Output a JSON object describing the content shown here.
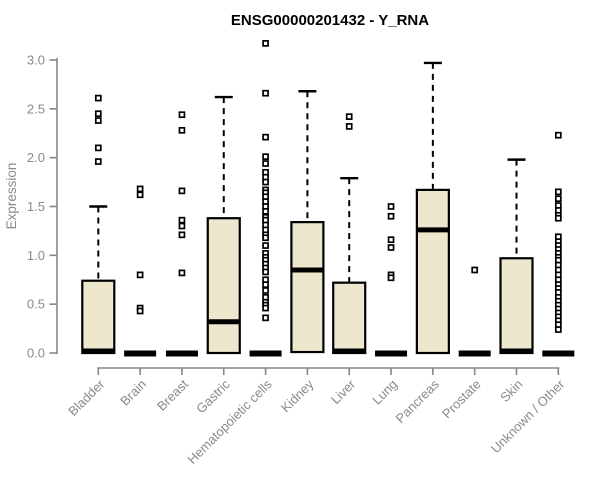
{
  "chart_data": {
    "type": "boxplot",
    "title": "ENSG00000201432 - Y_RNA",
    "ylabel": "Expression",
    "xlabel": "",
    "ylim": [
      0.0,
      3.2
    ],
    "yticks": [
      0.0,
      0.5,
      1.0,
      1.5,
      2.0,
      2.5,
      3.0
    ],
    "grid": false,
    "legend": false,
    "colors": {
      "box_fill": "#ECE7CD",
      "box_stroke": "#000000",
      "median": "#000000",
      "whisker": "#000000",
      "outlier_stroke": "#000000",
      "axis_line": "#878787",
      "axis_text": "#8a8a8a",
      "title": "#000000",
      "background": "#ffffff"
    },
    "categories": [
      "Bladder",
      "Brain",
      "Breast",
      "Gastric",
      "Hematopoietic cells",
      "Kidney",
      "Liver",
      "Lung",
      "Pancreas",
      "Prostate",
      "Skin",
      "Unknown / Other"
    ],
    "boxes": [
      {
        "name": "Bladder",
        "q1": 0.0,
        "median": 0.02,
        "q3": 0.74,
        "whisker_low": 0.0,
        "whisker_high": 1.5,
        "outliers": [
          2.61,
          2.45,
          2.38,
          2.1,
          1.96
        ]
      },
      {
        "name": "Brain",
        "q1": 0.0,
        "median": 0.01,
        "q3": 0.02,
        "whisker_low": 0.0,
        "whisker_high": 0.02,
        "outliers": [
          1.68,
          1.62,
          0.8,
          0.46,
          0.43
        ]
      },
      {
        "name": "Breast",
        "q1": 0.0,
        "median": 0.01,
        "q3": 0.02,
        "whisker_low": 0.0,
        "whisker_high": 0.02,
        "outliers": [
          2.44,
          2.28,
          1.66,
          1.36,
          1.3,
          1.21,
          0.82
        ]
      },
      {
        "name": "Gastric",
        "q1": 0.0,
        "median": 0.32,
        "q3": 1.38,
        "whisker_low": 0.0,
        "whisker_high": 2.62,
        "outliers": []
      },
      {
        "name": "Hematopoietic cells",
        "q1": 0.0,
        "median": 0.01,
        "q3": 0.02,
        "whisker_low": 0.0,
        "whisker_high": 0.02,
        "outliers": [
          3.17,
          2.66,
          2.21,
          2.01,
          1.94,
          1.85,
          1.8,
          1.75,
          1.67,
          1.64,
          1.6,
          1.55,
          1.5,
          1.45,
          1.39,
          1.36,
          1.31,
          1.26,
          1.21,
          1.18,
          1.1,
          1.02,
          0.98,
          0.95,
          0.91,
          0.87,
          0.83,
          0.75,
          0.7,
          0.64,
          0.57,
          0.52,
          0.49,
          0.46,
          0.36
        ]
      },
      {
        "name": "Kidney",
        "q1": 0.01,
        "median": 0.85,
        "q3": 1.34,
        "whisker_low": 0.01,
        "whisker_high": 2.68,
        "outliers": []
      },
      {
        "name": "Liver",
        "q1": 0.0,
        "median": 0.02,
        "q3": 0.72,
        "whisker_low": 0.0,
        "whisker_high": 1.79,
        "outliers": [
          2.42,
          2.32
        ]
      },
      {
        "name": "Lung",
        "q1": 0.0,
        "median": 0.01,
        "q3": 0.02,
        "whisker_low": 0.0,
        "whisker_high": 0.02,
        "outliers": [
          1.5,
          1.4,
          1.16,
          1.08,
          0.8,
          0.77
        ]
      },
      {
        "name": "Pancreas",
        "q1": 0.0,
        "median": 1.26,
        "q3": 1.67,
        "whisker_low": 0.0,
        "whisker_high": 2.97,
        "outliers": []
      },
      {
        "name": "Prostate",
        "q1": 0.0,
        "median": 0.01,
        "q3": 0.02,
        "whisker_low": 0.0,
        "whisker_high": 0.02,
        "outliers": [
          0.85
        ]
      },
      {
        "name": "Skin",
        "q1": 0.0,
        "median": 0.02,
        "q3": 0.97,
        "whisker_low": 0.0,
        "whisker_high": 1.98,
        "outliers": []
      },
      {
        "name": "Unknown / Other",
        "q1": 0.0,
        "median": 0.01,
        "q3": 0.02,
        "whisker_low": 0.0,
        "whisker_high": 0.02,
        "outliers": [
          2.23,
          1.65,
          1.58,
          1.51,
          1.46,
          1.41,
          1.38,
          1.19,
          1.14,
          1.1,
          1.06,
          1.02,
          0.98,
          0.95,
          0.9,
          0.85,
          0.8,
          0.75,
          0.7,
          0.66,
          0.62,
          0.57,
          0.53,
          0.49,
          0.45,
          0.41,
          0.37,
          0.33,
          0.29,
          0.24
        ]
      }
    ]
  }
}
